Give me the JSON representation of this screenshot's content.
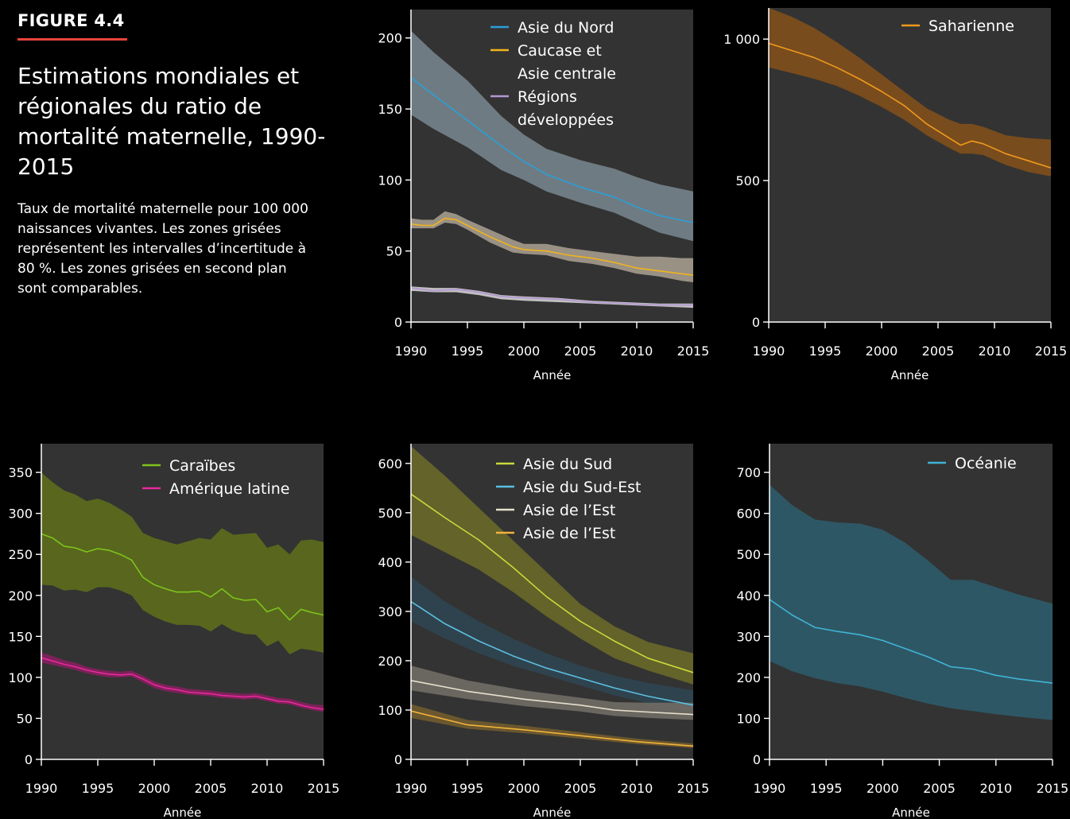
{
  "figure": {
    "label": "FIGURE 4.4",
    "title": "Estimations mondiales et régionales du ratio de mortalité maternelle, 1990-2015",
    "description": "Taux de mortalité maternelle pour 100 000 naissances vivantes. Les zones grisées représentent les intervalles d’incertitude à 80 %. Les zones grisées en second plan sont comparables."
  },
  "colors": {
    "background": "#000000",
    "panel": "#333333"
  },
  "chart_data": [
    {
      "type": "line",
      "xlabel": "Année",
      "ylabel": "",
      "xlim": [
        1990,
        2015
      ],
      "ylim": [
        0,
        220
      ],
      "x_ticks": [
        "1990",
        "1995",
        "2000",
        "2005",
        "2010",
        "2015"
      ],
      "y_ticks": [
        "0",
        "50",
        "100",
        "150",
        "200"
      ],
      "legend_position": "top-right",
      "series": [
        {
          "name": "Asie du Nord",
          "color": "#2b9fd8",
          "band_color": "#7a8890",
          "band_opacity": 0.85,
          "x": [
            1990,
            1992,
            1995,
            1998,
            2000,
            2002,
            2005,
            2008,
            2010,
            2012,
            2015
          ],
          "values": [
            172,
            160,
            142,
            124,
            113,
            104,
            95,
            88,
            81,
            75,
            70
          ],
          "lower": [
            146,
            136,
            123,
            107,
            100,
            92,
            84,
            77,
            70,
            63,
            57
          ],
          "upper": [
            205,
            190,
            170,
            145,
            132,
            122,
            114,
            108,
            102,
            97,
            92
          ]
        },
        {
          "name": "Caucase et Asie centrale",
          "color": "#f0b41c",
          "band_color": "#a0978a",
          "band_opacity": 0.95,
          "x": [
            1990,
            1991,
            1992,
            1993,
            1994,
            1995,
            1997,
            1999,
            2000,
            2002,
            2004,
            2005,
            2006,
            2008,
            2010,
            2012,
            2014,
            2015
          ],
          "values": [
            69,
            68,
            68,
            73,
            72,
            68,
            60,
            53,
            51,
            50,
            47,
            46,
            45,
            42,
            38,
            36,
            34,
            33
          ],
          "lower": [
            66,
            66,
            66,
            70,
            69,
            65,
            56,
            49,
            48,
            47,
            43,
            42,
            41,
            38,
            34,
            32,
            29,
            28
          ],
          "upper": [
            73,
            72,
            72,
            78,
            76,
            72,
            65,
            58,
            55,
            55,
            52,
            51,
            50,
            48,
            46,
            46,
            45,
            45
          ]
        },
        {
          "name": "Régions développées",
          "color": "#b596d4",
          "band_color": "#cfcfcf",
          "band_opacity": 0.9,
          "x": [
            1990,
            1992,
            1994,
            1996,
            1998,
            2000,
            2003,
            2006,
            2009,
            2012,
            2015
          ],
          "values": [
            24,
            22,
            23,
            21,
            18,
            17,
            16,
            14,
            13,
            12,
            12
          ],
          "lower": [
            22,
            21,
            21,
            19,
            16,
            15,
            14,
            13,
            12,
            11,
            10
          ],
          "upper": [
            25,
            24,
            24,
            22,
            19,
            18,
            17,
            15,
            14,
            13,
            13
          ]
        }
      ]
    },
    {
      "type": "line",
      "xlabel": "Année",
      "ylabel": "",
      "xlim": [
        1990,
        2015
      ],
      "ylim": [
        0,
        1110
      ],
      "x_ticks": [
        "1990",
        "1995",
        "2000",
        "2005",
        "2010",
        "2015"
      ],
      "y_ticks": [
        "0",
        "500",
        "1 000"
      ],
      "legend_position": "top-right",
      "series": [
        {
          "name": "Saharienne",
          "color": "#f09a1c",
          "band_color": "#7d4e1c",
          "band_opacity": 0.95,
          "x": [
            1990,
            1992,
            1994,
            1996,
            1998,
            2000,
            2002,
            2004,
            2006,
            2007,
            2008,
            2009,
            2011,
            2013,
            2015
          ],
          "values": [
            985,
            960,
            935,
            900,
            860,
            815,
            765,
            700,
            650,
            625,
            640,
            630,
            595,
            570,
            545
          ],
          "lower": [
            900,
            880,
            860,
            835,
            800,
            760,
            715,
            660,
            615,
            595,
            595,
            590,
            555,
            530,
            515
          ],
          "upper": [
            1110,
            1080,
            1040,
            990,
            935,
            875,
            815,
            755,
            715,
            700,
            700,
            690,
            660,
            650,
            645
          ]
        }
      ]
    },
    {
      "type": "line",
      "xlabel": "Année",
      "ylabel": "",
      "xlim": [
        1990,
        2015
      ],
      "ylim": [
        0,
        385
      ],
      "x_ticks": [
        "1990",
        "1995",
        "2000",
        "2005",
        "2010",
        "2015"
      ],
      "y_ticks": [
        "0",
        "50",
        "100",
        "150",
        "200",
        "250",
        "300",
        "350"
      ],
      "legend_position": "top-right",
      "series": [
        {
          "name": "Caraïbes",
          "color": "#7ec31c",
          "band_color": "#5b6a1c",
          "band_opacity": 0.95,
          "x": [
            1990,
            1991,
            1992,
            1993,
            1994,
            1995,
            1996,
            1997,
            1998,
            1999,
            2000,
            2001,
            2002,
            2003,
            2004,
            2005,
            2006,
            2007,
            2008,
            2009,
            2010,
            2011,
            2012,
            2013,
            2014,
            2015
          ],
          "values": [
            275,
            270,
            260,
            258,
            253,
            257,
            255,
            250,
            243,
            222,
            213,
            208,
            204,
            204,
            205,
            198,
            208,
            197,
            194,
            195,
            180,
            185,
            170,
            183,
            179,
            176
          ],
          "lower": [
            213,
            212,
            206,
            207,
            204,
            210,
            210,
            206,
            200,
            182,
            174,
            168,
            164,
            164,
            163,
            156,
            165,
            157,
            153,
            152,
            138,
            145,
            128,
            135,
            133,
            130
          ],
          "upper": [
            350,
            338,
            328,
            323,
            315,
            318,
            313,
            305,
            296,
            276,
            270,
            266,
            262,
            266,
            270,
            268,
            282,
            274,
            275,
            276,
            258,
            262,
            250,
            267,
            268,
            265
          ]
        },
        {
          "name": "Amérique latine",
          "color": "#e6299b",
          "band_color": "#8a2060",
          "band_opacity": 0.85,
          "x": [
            1990,
            1991,
            1992,
            1993,
            1994,
            1995,
            1996,
            1997,
            1998,
            1999,
            2000,
            2001,
            2002,
            2003,
            2004,
            2005,
            2006,
            2007,
            2008,
            2009,
            2010,
            2011,
            2012,
            2013,
            2014,
            2015
          ],
          "values": [
            124,
            120,
            116,
            113,
            109,
            106,
            104,
            103,
            104,
            98,
            91,
            87,
            85,
            82,
            81,
            80,
            78,
            77,
            76,
            77,
            74,
            71,
            70,
            66,
            63,
            61
          ],
          "lower": [
            118,
            115,
            112,
            109,
            105,
            102,
            100,
            100,
            101,
            94,
            87,
            83,
            81,
            79,
            78,
            77,
            75,
            74,
            73,
            74,
            71,
            68,
            67,
            63,
            60,
            58
          ],
          "upper": [
            130,
            126,
            121,
            118,
            113,
            110,
            108,
            107,
            108,
            102,
            95,
            91,
            89,
            86,
            85,
            84,
            82,
            81,
            80,
            81,
            78,
            75,
            74,
            70,
            67,
            66
          ]
        }
      ]
    },
    {
      "type": "line",
      "xlabel": "Année",
      "ylabel": "",
      "xlim": [
        1990,
        2015
      ],
      "ylim": [
        0,
        640
      ],
      "x_ticks": [
        "1990",
        "1995",
        "2000",
        "2005",
        "2010",
        "2015"
      ],
      "y_ticks": [
        "0",
        "100",
        "200",
        "300",
        "400",
        "500",
        "600"
      ],
      "legend_position": "top-right",
      "series": [
        {
          "name": "Asie du Sud",
          "color": "#c9d93a",
          "band_color": "#66662a",
          "band_opacity": 0.95,
          "x": [
            1990,
            1993,
            1996,
            1999,
            2002,
            2005,
            2008,
            2011,
            2015
          ],
          "values": [
            538,
            490,
            445,
            390,
            330,
            280,
            240,
            205,
            176
          ],
          "lower": [
            455,
            420,
            385,
            340,
            290,
            245,
            205,
            180,
            152
          ],
          "upper": [
            635,
            575,
            510,
            445,
            380,
            315,
            270,
            238,
            215
          ]
        },
        {
          "name": "Asie du Sud-Est",
          "color": "#5bbfe0",
          "band_color": "#2f4550",
          "band_opacity": 0.95,
          "x": [
            1990,
            1993,
            1996,
            1999,
            2002,
            2005,
            2008,
            2011,
            2015
          ],
          "values": [
            320,
            275,
            240,
            210,
            185,
            165,
            145,
            128,
            110
          ],
          "lower": [
            280,
            245,
            215,
            190,
            170,
            150,
            130,
            114,
            97
          ],
          "upper": [
            370,
            320,
            280,
            245,
            215,
            190,
            170,
            155,
            140
          ]
        },
        {
          "name": "Asie de l’Est",
          "color": "#e6e0cc",
          "band_color": "#6e6a63",
          "band_opacity": 0.95,
          "x": [
            1990,
            1995,
            2000,
            2005,
            2008,
            2011,
            2015
          ],
          "values": [
            160,
            138,
            122,
            110,
            100,
            96,
            91
          ],
          "lower": [
            140,
            122,
            108,
            97,
            88,
            84,
            80
          ],
          "upper": [
            190,
            160,
            140,
            125,
            116,
            115,
            115
          ]
        },
        {
          "name": "Asie de l’Est",
          "color": "#f0b33a",
          "band_color": "#6f5a2e",
          "band_opacity": 0.95,
          "x": [
            1990,
            1995,
            2000,
            2005,
            2010,
            2015
          ],
          "values": [
            98,
            70,
            60,
            48,
            36,
            27
          ],
          "lower": [
            84,
            62,
            53,
            42,
            31,
            23
          ],
          "upper": [
            112,
            80,
            68,
            55,
            42,
            32
          ]
        }
      ]
    },
    {
      "type": "line",
      "xlabel": "Année",
      "ylabel": "",
      "xlim": [
        1990,
        2015
      ],
      "ylim": [
        0,
        770
      ],
      "x_ticks": [
        "1990",
        "1995",
        "2000",
        "2005",
        "2010",
        "2015"
      ],
      "y_ticks": [
        "0",
        "100",
        "200",
        "300",
        "400",
        "500",
        "600",
        "700"
      ],
      "legend_position": "top-right",
      "series": [
        {
          "name": "Océanie",
          "color": "#3fb4d6",
          "band_color": "#2e5a68",
          "band_opacity": 0.95,
          "x": [
            1990,
            1992,
            1994,
            1996,
            1998,
            2000,
            2002,
            2004,
            2006,
            2008,
            2010,
            2012,
            2015
          ],
          "values": [
            390,
            352,
            322,
            312,
            304,
            290,
            270,
            250,
            226,
            220,
            205,
            196,
            186
          ],
          "lower": [
            240,
            215,
            198,
            186,
            178,
            165,
            150,
            136,
            125,
            118,
            110,
            104,
            96
          ],
          "upper": [
            670,
            620,
            585,
            578,
            575,
            560,
            528,
            485,
            438,
            438,
            420,
            402,
            380
          ]
        }
      ]
    }
  ]
}
